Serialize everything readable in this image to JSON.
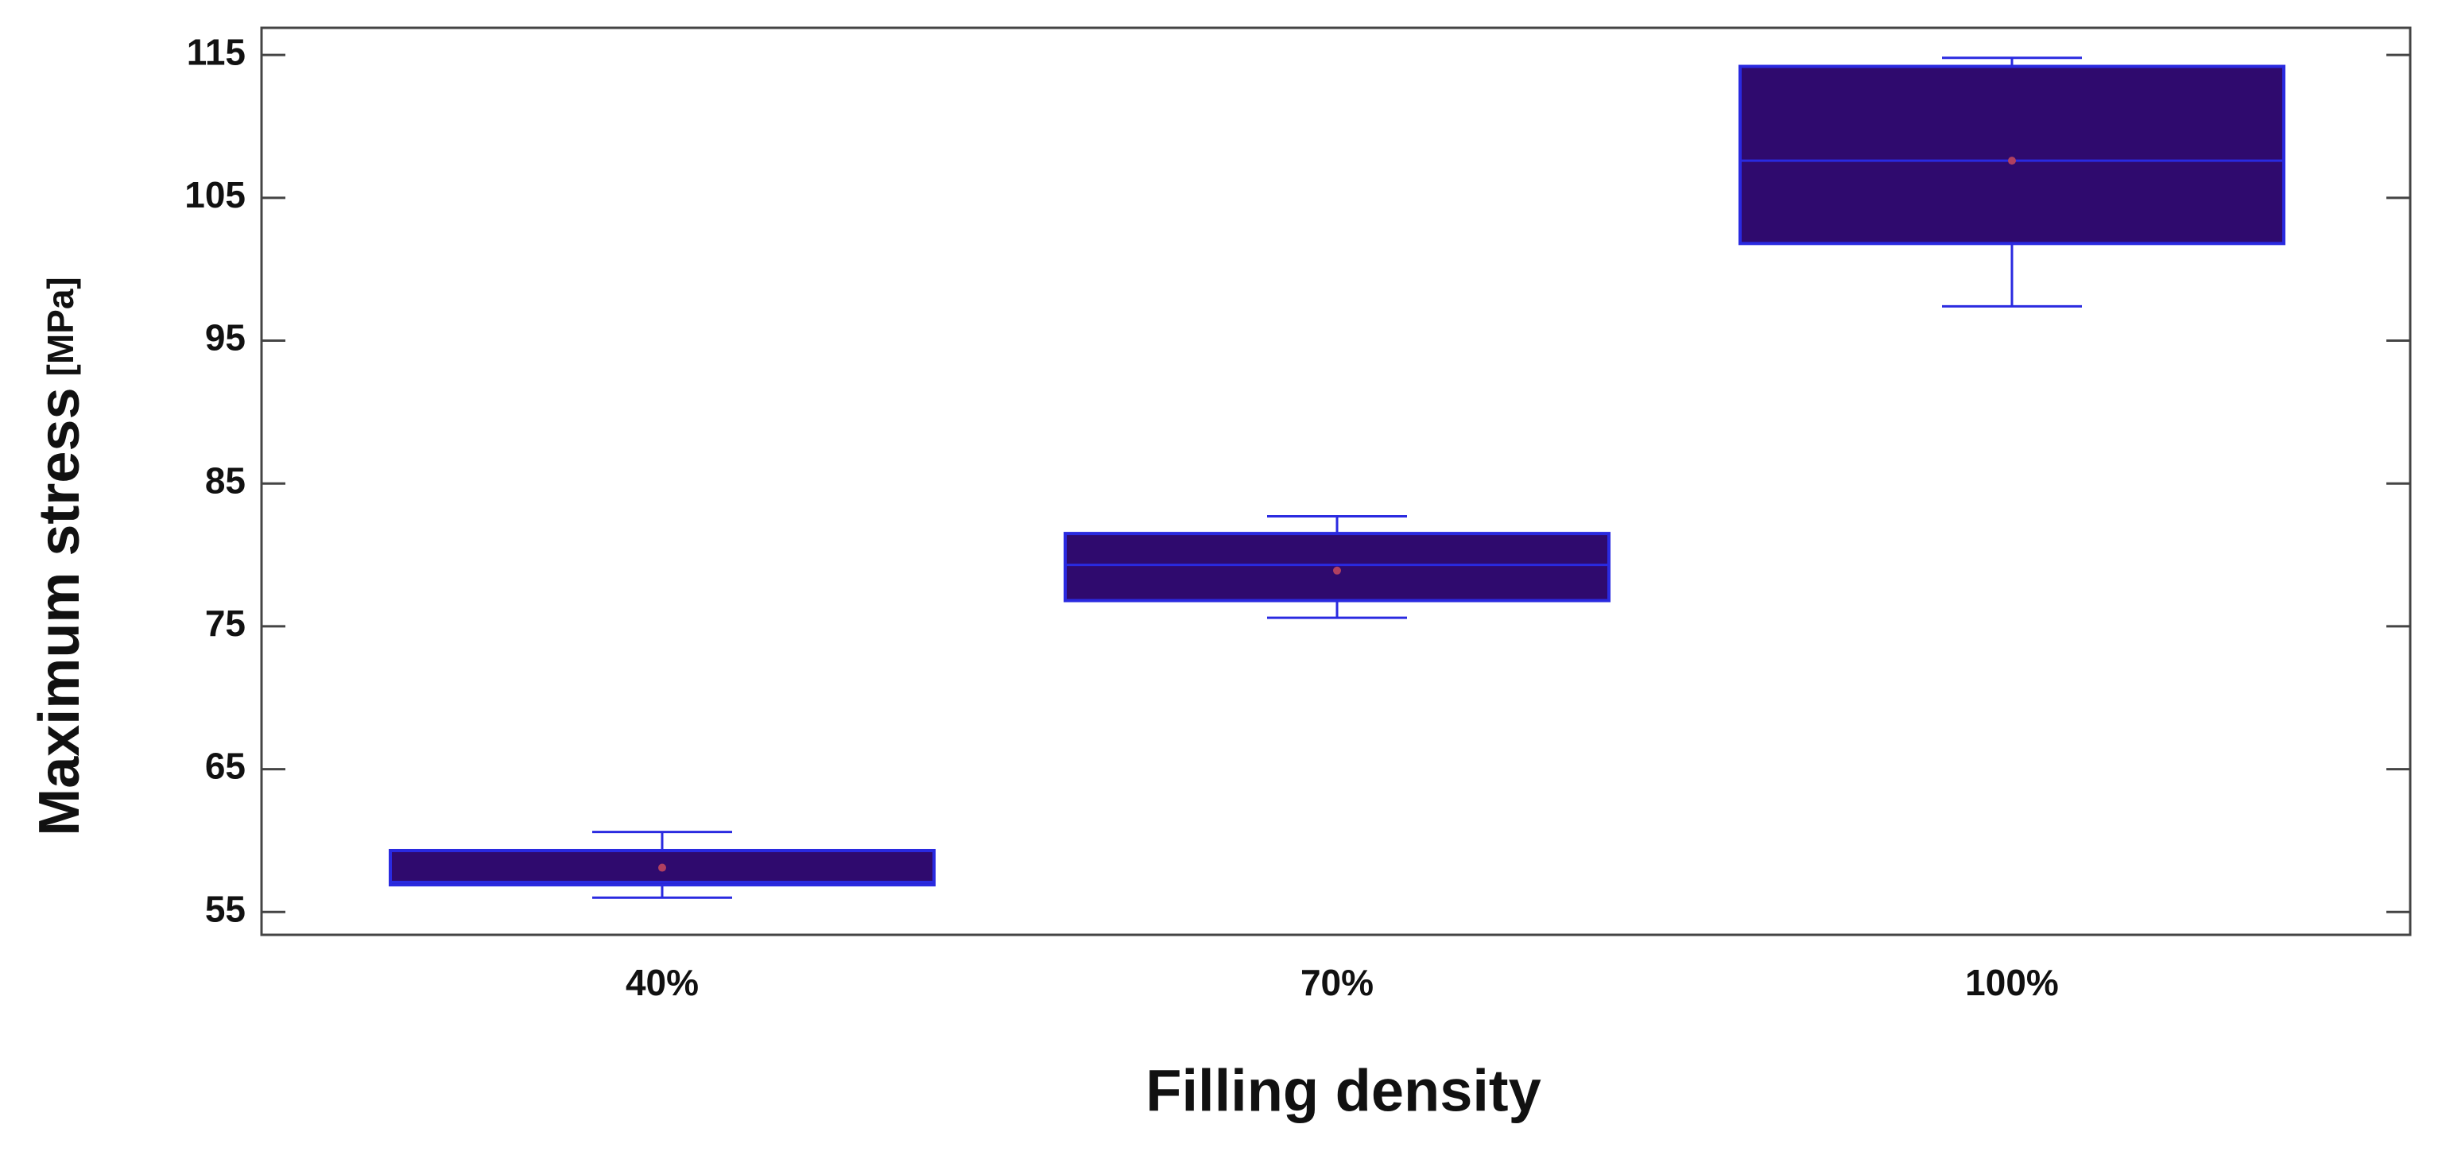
{
  "chart_data": {
    "type": "box",
    "x_label": "Filling density",
    "y_label": "Maximum stress",
    "y_label_unit": "[MPa]",
    "categories": [
      "40%",
      "70%",
      "100%"
    ],
    "boxes": [
      {
        "min": 56.0,
        "q1": 56.9,
        "median": 57.1,
        "q3": 59.3,
        "max": 60.6,
        "mean": 58.1
      },
      {
        "min": 75.6,
        "q1": 76.8,
        "median": 79.3,
        "q3": 81.5,
        "max": 82.7,
        "mean": 78.9
      },
      {
        "min": 97.4,
        "q1": 101.8,
        "median": 107.6,
        "q3": 114.2,
        "max": 114.8,
        "mean": 107.6
      }
    ],
    "box_color": "#2f0a6e",
    "edge_color": "#2a2ae0",
    "ylim": [
      53.4,
      116.9
    ],
    "yticks": [
      55,
      65,
      75,
      85,
      95,
      105,
      115
    ]
  }
}
